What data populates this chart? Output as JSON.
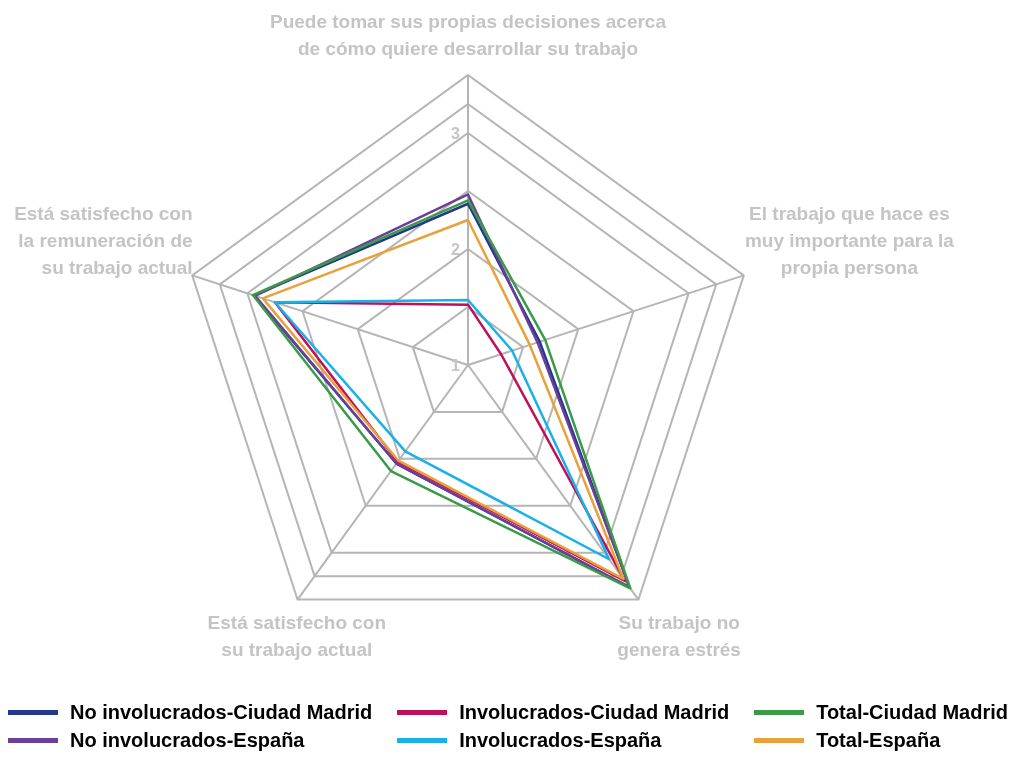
{
  "chart_data": {
    "type": "radar",
    "categories": [
      "Puede tomar sus propias decisiones acerca de cómo quiere desarrollar su trabajo",
      "El trabajo que hace es muy importante para la propia persona",
      "Su trabajo no genera estrés",
      "Está satisfecho con su trabajo actual",
      "Está satisfecho con la remuneración de su trabajo actual"
    ],
    "series": [
      {
        "name": "No involucrados-Ciudad Madrid",
        "color": "#23388c",
        "values": [
          2.39,
          1.65,
          3.37,
          2.05,
          2.94
        ]
      },
      {
        "name": "No involucrados-España",
        "color": "#6b3f98",
        "values": [
          2.47,
          1.63,
          3.37,
          2.05,
          2.93
        ]
      },
      {
        "name": "Involucrados-Ciudad Madrid",
        "color": "#c0105a",
        "values": [
          1.52,
          1.3,
          3.3,
          2.03,
          2.75
        ]
      },
      {
        "name": "Involucrados-España",
        "color": "#1ab0e8",
        "values": [
          1.56,
          1.4,
          3.07,
          1.92,
          2.75
        ]
      },
      {
        "name": "Total-Ciudad Madrid",
        "color": "#3a9a48",
        "values": [
          2.42,
          1.7,
          3.38,
          2.13,
          2.95
        ]
      },
      {
        "name": "Total-España",
        "color": "#e9a23b",
        "values": [
          2.25,
          1.56,
          3.28,
          2.02,
          2.86
        ]
      }
    ],
    "ylim": [
      1,
      3.5
    ],
    "yticks": [
      1,
      2,
      3
    ],
    "grid": true,
    "legend": "bottom",
    "marker": "none",
    "line_style": "solid"
  }
}
